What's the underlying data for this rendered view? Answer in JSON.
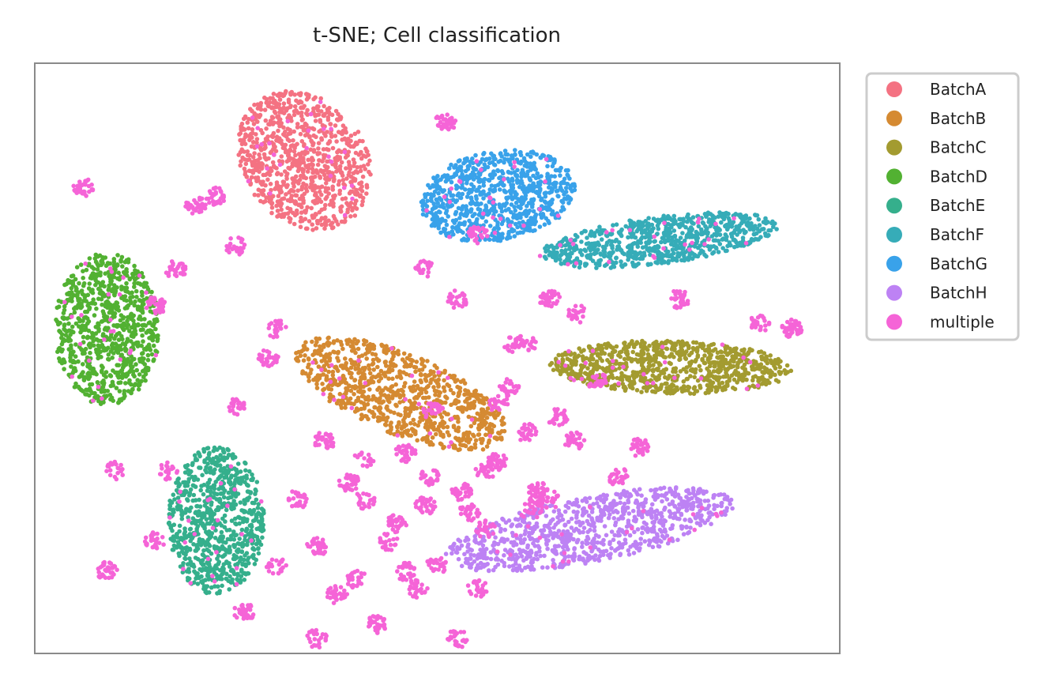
{
  "chart_data": {
    "type": "scatter",
    "title": "t-SNE; Cell classification",
    "xlabel": "",
    "ylabel": "",
    "xlim": [
      -100,
      100
    ],
    "ylim": [
      -100,
      100
    ],
    "grid": false,
    "show_ticks": false,
    "legend": {
      "placement": "right-outside-top",
      "entries": [
        "BatchA",
        "BatchB",
        "BatchC",
        "BatchD",
        "BatchE",
        "BatchF",
        "BatchG",
        "BatchH",
        "multiple"
      ]
    },
    "series": [
      {
        "name": "BatchA",
        "color": "#f47282",
        "cluster": {
          "cx": -33,
          "cy": 67,
          "rx": 16,
          "ry": 24,
          "angle": 15,
          "n": 900
        }
      },
      {
        "name": "BatchB",
        "color": "#d58a32",
        "cluster": {
          "cx": -9,
          "cy": -12,
          "rx": 30,
          "ry": 13,
          "angle": -32,
          "n": 900
        }
      },
      {
        "name": "BatchC",
        "color": "#a39b30",
        "cluster": {
          "cx": 58,
          "cy": -3,
          "rx": 30,
          "ry": 9,
          "angle": -2,
          "n": 850
        }
      },
      {
        "name": "BatchD",
        "color": "#52b132",
        "cluster": {
          "cx": -82,
          "cy": 10,
          "rx": 13,
          "ry": 26,
          "angle": 0,
          "n": 850
        }
      },
      {
        "name": "BatchE",
        "color": "#35af8c",
        "cluster": {
          "cx": -55,
          "cy": -55,
          "rx": 12,
          "ry": 25,
          "angle": 0,
          "n": 800
        }
      },
      {
        "name": "BatchF",
        "color": "#36acb8",
        "cluster": {
          "cx": 55,
          "cy": 40,
          "rx": 30,
          "ry": 8,
          "angle": 10,
          "n": 750
        }
      },
      {
        "name": "BatchG",
        "color": "#39a2ea",
        "cluster": {
          "cx": 15,
          "cy": 55,
          "rx": 20,
          "ry": 15,
          "angle": 20,
          "n": 800
        }
      },
      {
        "name": "BatchH",
        "color": "#bd82f4",
        "cluster": {
          "cx": 38,
          "cy": -58,
          "rx": 37,
          "ry": 11,
          "angle": 15,
          "n": 900
        }
      },
      {
        "name": "multiple",
        "color": "#f564d7",
        "blobs": [
          [
            -60,
            52
          ],
          [
            -50,
            38
          ],
          [
            -42,
            0
          ],
          [
            -28,
            -28
          ],
          [
            -22,
            -42
          ],
          [
            -18,
            -48
          ],
          [
            -12,
            -62
          ],
          [
            -20,
            -75
          ],
          [
            -15,
            -90
          ],
          [
            -8,
            -72
          ],
          [
            -5,
            -78
          ],
          [
            -3,
            -50
          ],
          [
            0,
            -70
          ],
          [
            6,
            -45
          ],
          [
            8,
            -52
          ],
          [
            10,
            -78
          ],
          [
            15,
            -35
          ],
          [
            15,
            -15
          ],
          [
            18,
            -10
          ],
          [
            19,
            5
          ],
          [
            22,
            5
          ],
          [
            22,
            -25
          ],
          [
            25,
            -45
          ],
          [
            28,
            20
          ],
          [
            30,
            -20
          ],
          [
            35,
            15
          ],
          [
            40,
            -8
          ],
          [
            50,
            -30
          ],
          [
            -3,
            30
          ],
          [
            5,
            20
          ],
          [
            -8,
            -32
          ],
          [
            -1,
            -18
          ],
          [
            -80,
            -38
          ],
          [
            -82,
            -72
          ],
          [
            -48,
            -86
          ],
          [
            -40,
            -70
          ],
          [
            10,
            42
          ],
          [
            2,
            80
          ],
          [
            -30,
            -64
          ],
          [
            -25,
            -80
          ],
          [
            -70,
            -62
          ],
          [
            -67,
            -38
          ],
          [
            -50,
            -16
          ],
          [
            -35,
            -48
          ],
          [
            12,
            -58
          ],
          [
            28,
            -48
          ],
          [
            45,
            -40
          ],
          [
            -88,
            58
          ],
          [
            -55,
            55
          ],
          [
            88,
            10
          ],
          [
            80,
            12
          ],
          [
            24,
            -50
          ],
          [
            -2,
            -40
          ],
          [
            -10,
            -56
          ],
          [
            -30,
            -95
          ],
          [
            5,
            -95
          ],
          [
            -18,
            -34
          ],
          [
            12,
            -38
          ],
          [
            34,
            -28
          ],
          [
            -65,
            30
          ],
          [
            -40,
            10
          ],
          [
            -70,
            18
          ],
          [
            60,
            20
          ]
        ]
      }
    ]
  }
}
